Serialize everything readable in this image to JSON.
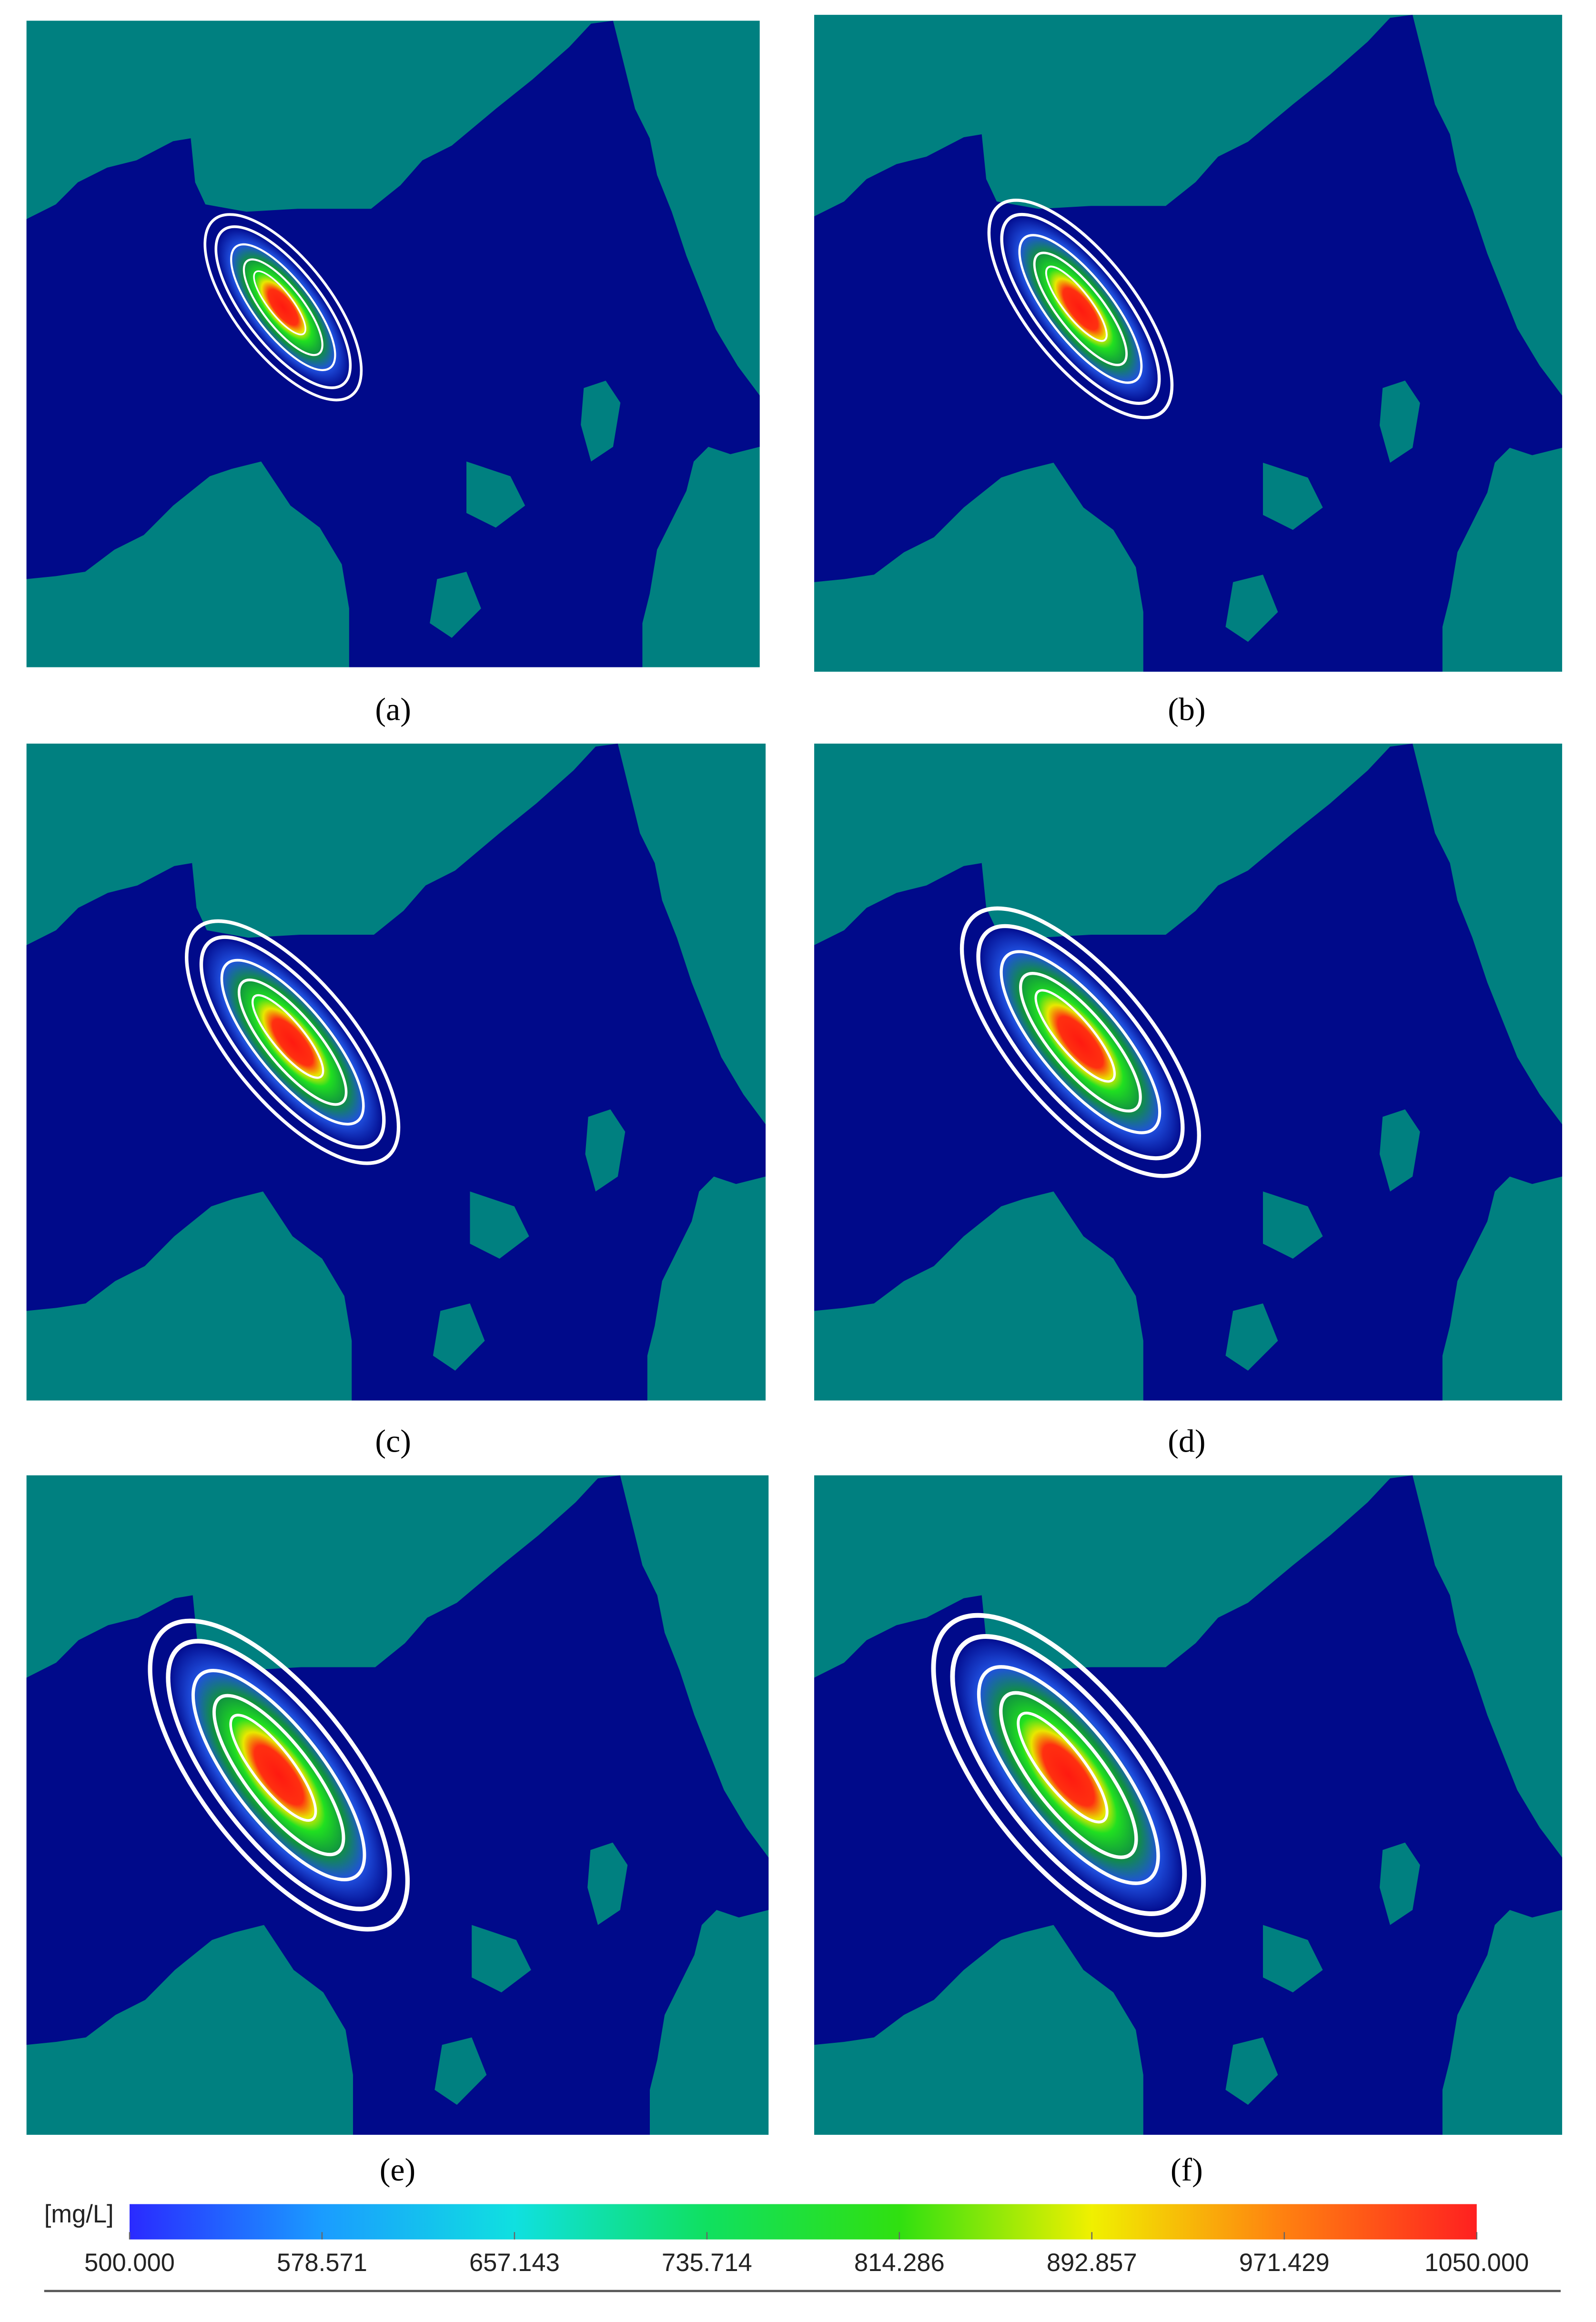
{
  "panels": [
    {
      "label": "(a)"
    },
    {
      "label": "(b)"
    },
    {
      "label": "(c)"
    },
    {
      "label": "(d)"
    },
    {
      "label": "(e)"
    },
    {
      "label": "(f)"
    }
  ],
  "colorbar": {
    "unit": "[mg/L]",
    "lim": [
      500,
      1050
    ],
    "ticks": [
      {
        "value": 500,
        "label": "500.000"
      },
      578.571,
      657.143,
      735.714,
      814.286,
      892.857,
      971.429,
      {
        "value": 1050,
        "label": "1050.000"
      }
    ],
    "colors": [
      "#2a2aff",
      "#1a9cff",
      "#10e0e0",
      "#10e060",
      "#30e010",
      "#f0f000",
      "#ff8010",
      "#ff2020"
    ]
  }
}
